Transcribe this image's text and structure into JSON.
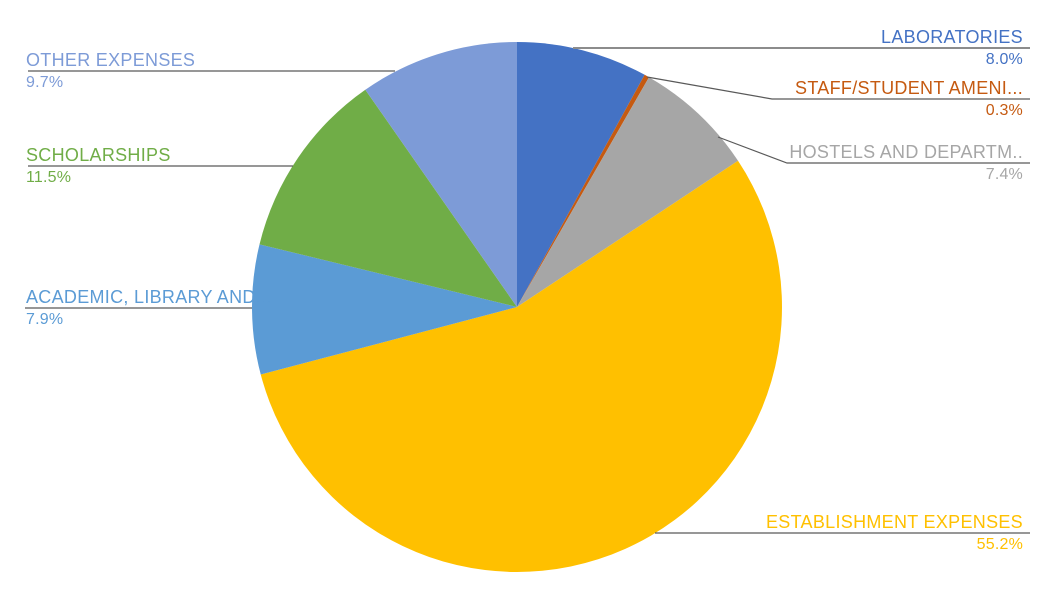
{
  "chart_data": {
    "type": "pie",
    "title": "",
    "legend": "none",
    "background": "#FFFFFF",
    "direction": "clockwise",
    "start_angle_deg": 0,
    "total": 100,
    "slices": [
      {
        "label": "LABORATORIES",
        "value": 8.0,
        "pct_text": "8.0%",
        "color": "#4472C4"
      },
      {
        "label": "STAFF/STUDENT AMENI...",
        "value": 0.3,
        "pct_text": "0.3%",
        "color": "#C55A11"
      },
      {
        "label": "HOSTELS AND DEPARTM..",
        "value": 7.4,
        "pct_text": "7.4%",
        "color": "#A6A6A6"
      },
      {
        "label": "ESTABLISHMENT EXPENSES",
        "value": 55.2,
        "pct_text": "55.2%",
        "color": "#FFC000"
      },
      {
        "label": "ACADEMIC, LIBRARY AND...",
        "value": 7.9,
        "pct_text": "7.9%",
        "color": "#5B9BD5"
      },
      {
        "label": "SCHOLARSHIPS",
        "value": 11.5,
        "pct_text": "11.5%",
        "color": "#70AD47"
      },
      {
        "label": "OTHER EXPENSES",
        "value": 9.7,
        "pct_text": "9.7%",
        "color": "#7D9BD7"
      }
    ],
    "leader_colors": {
      "default": "#595959",
      "laboratories": "#8C8C8C"
    }
  }
}
